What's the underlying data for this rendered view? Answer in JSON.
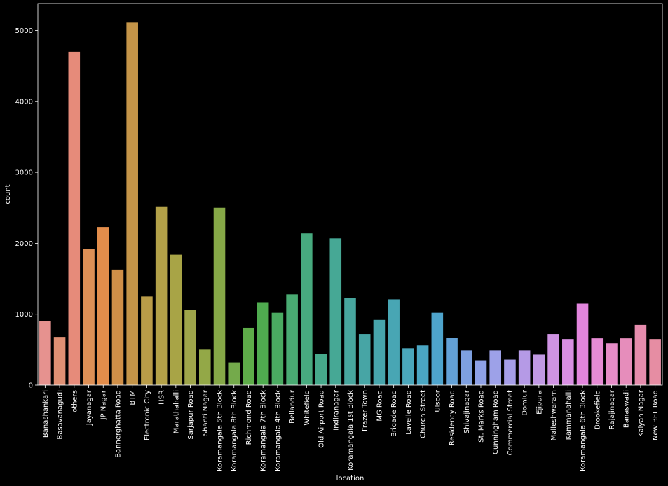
{
  "chart_data": {
    "type": "bar",
    "xlabel": "location",
    "ylabel": "count",
    "ylim": [
      0,
      5380
    ],
    "yticks": [
      0,
      1000,
      2000,
      3000,
      4000,
      5000
    ],
    "grid": false,
    "categories": [
      "Banashankari",
      "Basavanagudi",
      "others",
      "Jayanagar",
      "JP Nagar",
      "Bannerghatta Road",
      "BTM",
      "Electronic City",
      "HSR",
      "Marathahalli",
      "Sarjapur Road",
      "Shanti Nagar",
      "Koramangala 5th Block",
      "Koramangala 8th Block",
      "Richmond Road",
      "Koramangala 7th Block",
      "Koramangala 4th Block",
      "Bellandur",
      "Whitefield",
      "Old Airport Road",
      "Indiranagar",
      "Koramangala 1st Block",
      "Frazer Town",
      "MG Road",
      "Brigade Road",
      "Lavelle Road",
      "Church Street",
      "Ulsoor",
      "Residency Road",
      "Shivajinagar",
      "St. Marks Road",
      "Cunningham Road",
      "Commercial Street",
      "Domlur",
      "Ejipura",
      "Malleshwaram",
      "Kammanahalli",
      "Koramangala 6th Block",
      "Brookefield",
      "Rajajinagar",
      "Banaswadi",
      "Kalyan Nagar",
      "New BEL Road"
    ],
    "values": [
      906,
      680,
      4700,
      1920,
      2230,
      1630,
      5110,
      1250,
      2520,
      1840,
      1060,
      500,
      2500,
      320,
      810,
      1170,
      1020,
      1280,
      2140,
      440,
      2070,
      1230,
      720,
      920,
      1210,
      520,
      560,
      1020,
      670,
      490,
      350,
      490,
      360,
      490,
      430,
      720,
      650,
      1150,
      660,
      590,
      660,
      850,
      650
    ],
    "colors": [
      "#e6928f",
      "#e09074",
      "#e68b7a",
      "#dd8f55",
      "#e38d4b",
      "#d08f48",
      "#c49448",
      "#b99c48",
      "#b3a148",
      "#a8a446",
      "#9ea54a",
      "#93a847",
      "#86a847",
      "#74aa4b",
      "#5eac49",
      "#4fab4f",
      "#4aaa61",
      "#49aa72",
      "#47aa7f",
      "#46a98b",
      "#46a895",
      "#47a69e",
      "#47a5a5",
      "#47a5ac",
      "#48a6b4",
      "#4aa6bb",
      "#4aa6c3",
      "#4ea4cc",
      "#63a1d6",
      "#7ea0e0",
      "#8ea1e6",
      "#9da1e8",
      "#a69ee9",
      "#b59ae6",
      "#c199e4",
      "#cf93e3",
      "#d88fe2",
      "#e285dd",
      "#e68bd4",
      "#e68cc7",
      "#e68dbb",
      "#e68cad",
      "#e68da3"
    ]
  }
}
